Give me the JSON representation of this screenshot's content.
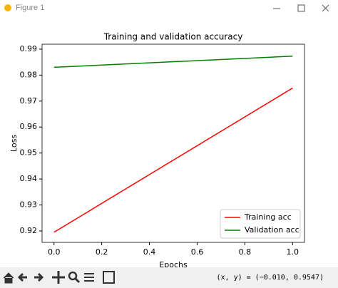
{
  "window": {
    "title": "Figure 1",
    "status": "(x, y) = (−0.010, 0.9547)"
  },
  "chart_data": {
    "type": "line",
    "title": "Training and validation accuracy",
    "x_label": "Epochs",
    "y_label": "Loss",
    "x": [
      0,
      1
    ],
    "series": [
      {
        "name": "Training acc",
        "color": "#ff0000",
        "values": [
          0.9195,
          0.975
        ]
      },
      {
        "name": "Validation acc",
        "color": "#008000",
        "values": [
          0.983,
          0.9873
        ]
      }
    ],
    "xlim": [
      -0.05,
      1.05
    ],
    "ylim": [
      0.9156,
      0.9919
    ],
    "xticks": [
      {
        "value": 0,
        "label": "0.0"
      },
      {
        "value": 0.2,
        "label": "0.2"
      },
      {
        "value": 0.4,
        "label": "0.4"
      },
      {
        "value": 0.6,
        "label": "0.6"
      },
      {
        "value": 0.8,
        "label": "0.8"
      },
      {
        "value": 1,
        "label": "1.0"
      }
    ],
    "yticks": [
      0.92,
      0.93,
      0.94,
      0.95,
      0.96,
      0.97,
      0.98,
      0.99
    ],
    "grid": false,
    "legend": "lower right"
  }
}
